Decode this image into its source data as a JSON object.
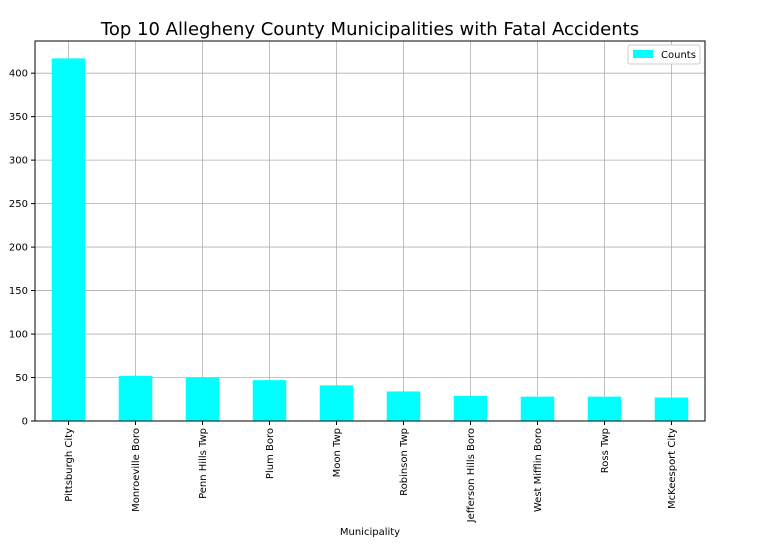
{
  "chart_data": {
    "type": "bar",
    "title": "Top 10 Allegheny County Municipalities with Fatal Accidents",
    "xlabel": "Municipality",
    "ylabel": "",
    "categories": [
      "Pittsburgh City",
      "Monroeville Boro",
      "Penn Hills Twp",
      "Plum Boro",
      "Moon Twp",
      "Robinson Twp",
      "Jefferson Hills Boro",
      "West Mifflin Boro",
      "Ross Twp",
      "McKeesport City"
    ],
    "series": [
      {
        "name": "Counts",
        "color": "#00ffff",
        "values": [
          417,
          52,
          50,
          47,
          41,
          34,
          29,
          28,
          28,
          27
        ]
      }
    ],
    "ylim": [
      0,
      437
    ],
    "yticks": [
      "0",
      "50",
      "100",
      "150",
      "200",
      "250",
      "300",
      "350",
      "400"
    ],
    "grid": true,
    "legend_position": "top-right"
  }
}
